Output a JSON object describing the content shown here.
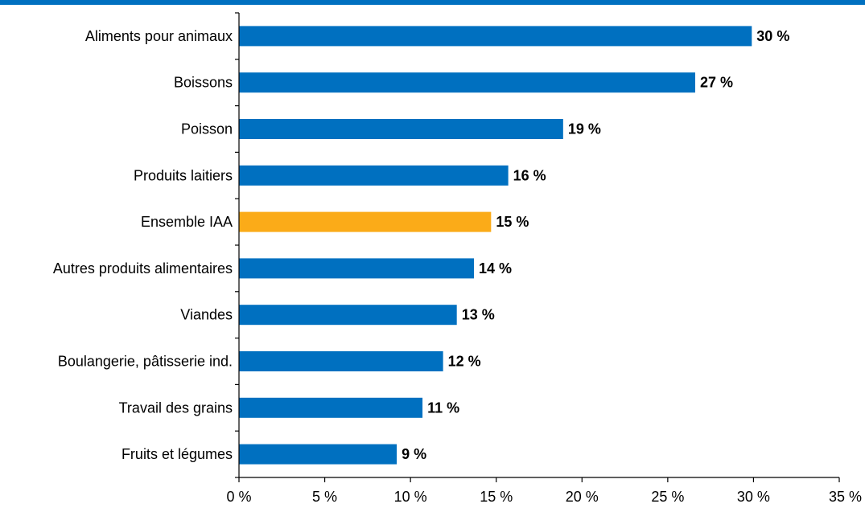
{
  "colors": {
    "top_rule": "#0070c0",
    "bar_default": "#0070c0",
    "bar_highlight": "#fbab18"
  },
  "chart_data": {
    "type": "bar",
    "orientation": "horizontal",
    "title": "",
    "xlabel": "",
    "ylabel": "",
    "categories": [
      "Aliments pour animaux",
      "Boissons",
      "Poisson",
      "Produits laitiers",
      "Ensemble IAA",
      "Autres produits alimentaires",
      "Viandes",
      "Boulangerie, pâtisserie ind.",
      "Travail des grains",
      "Fruits et légumes"
    ],
    "values": [
      29.9,
      26.6,
      18.9,
      15.7,
      14.7,
      13.7,
      12.7,
      11.9,
      10.7,
      9.2
    ],
    "data_labels": [
      "30 %",
      "27 %",
      "19 %",
      "16 %",
      "15 %",
      "14 %",
      "13 %",
      "12 %",
      "11 %",
      "9 %"
    ],
    "highlight_category": "Ensemble IAA",
    "xlim": [
      0,
      35
    ],
    "xticks": [
      0,
      5,
      10,
      15,
      20,
      25,
      30,
      35
    ],
    "xtick_labels": [
      "0 %",
      "5 %",
      "10 %",
      "15 %",
      "20 %",
      "25 %",
      "30 %",
      "35 %"
    ],
    "grid": false,
    "legend": "none"
  }
}
